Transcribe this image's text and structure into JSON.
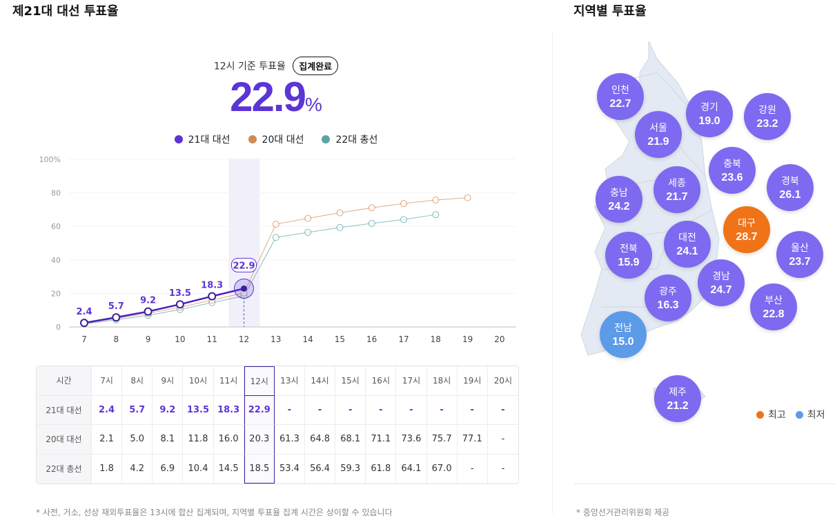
{
  "title": "제21대 대선 투표율",
  "region_title": "지역별 투표율",
  "summary": {
    "label": "12시 기준 투표율",
    "badge": "집계완료",
    "value": "22.9",
    "unit": "%"
  },
  "colors": {
    "s21": "#5b35d5",
    "s20": "#d08a55",
    "s22": "#5aa5a3",
    "high": "#f07318",
    "low": "#5b9be8",
    "bubble": "#7d6af0"
  },
  "legend": [
    {
      "label": "21대 대선",
      "color": "#5b35d5"
    },
    {
      "label": "20대 대선",
      "color": "#d08a55"
    },
    {
      "label": "22대 총선",
      "color": "#5aa5a3"
    }
  ],
  "chart_data": {
    "type": "line",
    "x": [
      7,
      8,
      9,
      10,
      11,
      12,
      13,
      14,
      15,
      16,
      17,
      18,
      19,
      20
    ],
    "ylim": [
      0,
      100
    ],
    "yticks": [
      "0",
      "20",
      "40",
      "60",
      "80",
      "100%"
    ],
    "highlight_x": 12,
    "series": [
      {
        "name": "21대 대선",
        "values": [
          2.4,
          5.7,
          9.2,
          13.5,
          18.3,
          22.9,
          null,
          null,
          null,
          null,
          null,
          null,
          null,
          null
        ]
      },
      {
        "name": "20대 대선",
        "values": [
          2.1,
          5.0,
          8.1,
          11.8,
          16.0,
          20.3,
          61.3,
          64.8,
          68.1,
          71.1,
          73.6,
          75.7,
          77.1,
          null
        ]
      },
      {
        "name": "22대 총선",
        "values": [
          1.8,
          4.2,
          6.9,
          10.4,
          14.5,
          18.5,
          53.4,
          56.4,
          59.3,
          61.8,
          64.1,
          67.0,
          null,
          null
        ]
      }
    ]
  },
  "table": {
    "header": "시간",
    "hours": [
      "7시",
      "8시",
      "9시",
      "10시",
      "11시",
      "12시",
      "13시",
      "14시",
      "15시",
      "16시",
      "17시",
      "18시",
      "19시",
      "20시"
    ],
    "rows": [
      {
        "label": "21대 대선",
        "cells": [
          "2.4",
          "5.7",
          "9.2",
          "13.5",
          "18.3",
          "22.9",
          "-",
          "-",
          "-",
          "-",
          "-",
          "-",
          "-",
          "-"
        ]
      },
      {
        "label": "20대 대선",
        "cells": [
          "2.1",
          "5.0",
          "8.1",
          "11.8",
          "16.0",
          "20.3",
          "61.3",
          "64.8",
          "68.1",
          "71.1",
          "73.6",
          "75.7",
          "77.1",
          "-"
        ]
      },
      {
        "label": "22대 총선",
        "cells": [
          "1.8",
          "4.2",
          "6.9",
          "10.4",
          "14.5",
          "18.5",
          "53.4",
          "56.4",
          "59.3",
          "61.8",
          "64.1",
          "67.0",
          "-",
          "-"
        ]
      }
    ]
  },
  "regions": [
    {
      "name": "인천",
      "value": "22.7"
    },
    {
      "name": "경기",
      "value": "19.0"
    },
    {
      "name": "강원",
      "value": "23.2"
    },
    {
      "name": "서울",
      "value": "21.9"
    },
    {
      "name": "충북",
      "value": "23.6"
    },
    {
      "name": "경북",
      "value": "26.1"
    },
    {
      "name": "충남",
      "value": "24.2"
    },
    {
      "name": "세종",
      "value": "21.7"
    },
    {
      "name": "대구",
      "value": "28.7",
      "status": "high"
    },
    {
      "name": "전북",
      "value": "15.9"
    },
    {
      "name": "대전",
      "value": "24.1"
    },
    {
      "name": "울산",
      "value": "23.7"
    },
    {
      "name": "경남",
      "value": "24.7"
    },
    {
      "name": "광주",
      "value": "16.3"
    },
    {
      "name": "부산",
      "value": "22.8"
    },
    {
      "name": "전남",
      "value": "15.0",
      "status": "low"
    },
    {
      "name": "제주",
      "value": "21.2"
    }
  ],
  "map_legend": {
    "high": "최고",
    "low": "최저"
  },
  "notes": {
    "left": "* 사전, 거소, 선상 재외투표율은 13시에 합산 집계되며, 지역별 투표율 집계 시간은 상이할 수 있습니다",
    "right": "* 중앙선거관리위원회 제공"
  }
}
